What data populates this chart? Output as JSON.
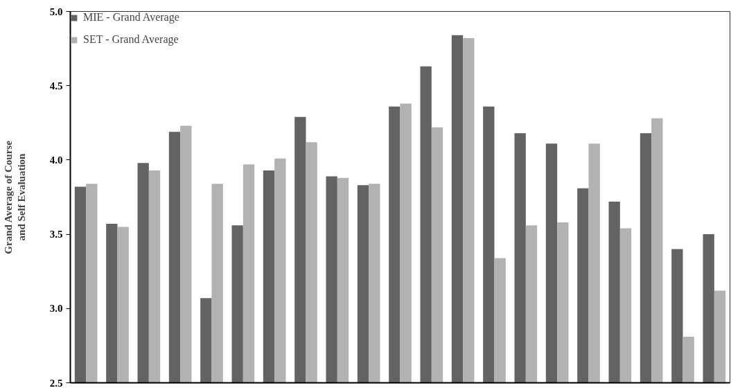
{
  "chart_data": {
    "type": "bar",
    "ylabel": "Grand Average of Course\nand Self Evaluation",
    "categories": [
      null,
      null,
      null,
      null,
      null,
      null,
      null,
      null,
      null,
      null,
      null,
      null,
      null,
      null,
      null,
      null,
      null,
      null,
      null,
      null,
      null
    ],
    "series": [
      {
        "name": "MIE - Grand Average",
        "color": "#636363",
        "values": [
          3.82,
          3.57,
          3.98,
          4.19,
          3.07,
          3.56,
          3.93,
          4.29,
          3.89,
          3.83,
          4.36,
          4.63,
          4.84,
          4.36,
          4.18,
          4.11,
          3.81,
          3.72,
          4.18,
          3.4,
          3.5
        ]
      },
      {
        "name": "SET - Grand Average",
        "color": "#b2b2b2",
        "values": [
          3.84,
          3.55,
          3.93,
          4.23,
          3.84,
          3.97,
          4.01,
          4.12,
          3.88,
          3.84,
          4.38,
          4.22,
          4.82,
          3.34,
          3.56,
          3.58,
          4.11,
          3.54,
          4.28,
          2.81,
          3.12
        ]
      }
    ],
    "ylim": [
      2.5,
      5.0
    ],
    "yticks": [
      {
        "value": 2.5,
        "label": "2.5"
      },
      {
        "value": 3.0,
        "label": "3.0"
      },
      {
        "value": 3.5,
        "label": "3.5"
      },
      {
        "value": 4.0,
        "label": "4.0"
      },
      {
        "value": 4.5,
        "label": "4.5"
      },
      {
        "value": 5.0,
        "label": "5.0"
      }
    ],
    "legend": "top left",
    "grid": false,
    "tick_labels": "y"
  }
}
